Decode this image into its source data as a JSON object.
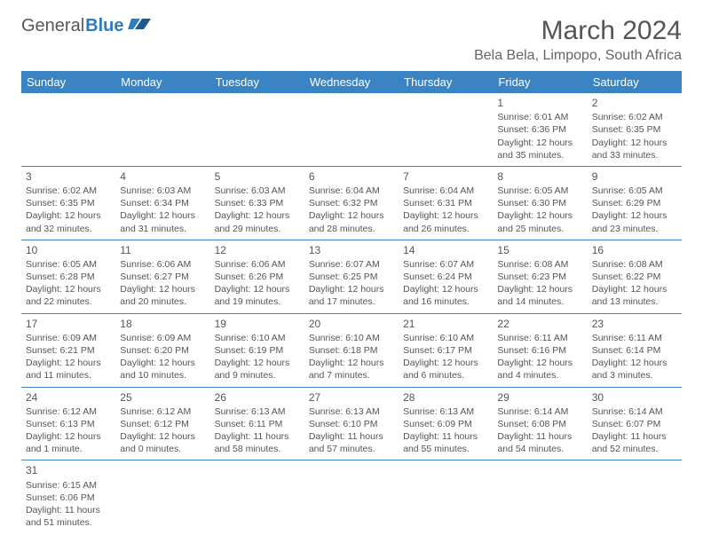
{
  "logo": {
    "general": "General",
    "blue": "Blue"
  },
  "title": "March 2024",
  "location": "Bela Bela, Limpopo, South Africa",
  "colors": {
    "header_bg": "#3b84c4",
    "header_text": "#ffffff",
    "divider": "#3b84c4",
    "text": "#555555",
    "logo_blue": "#2f7bbf"
  },
  "day_names": [
    "Sunday",
    "Monday",
    "Tuesday",
    "Wednesday",
    "Thursday",
    "Friday",
    "Saturday"
  ],
  "weeks": [
    [
      null,
      null,
      null,
      null,
      null,
      {
        "d": "1",
        "rise": "Sunrise: 6:01 AM",
        "set": "Sunset: 6:36 PM",
        "day": "Daylight: 12 hours and 35 minutes."
      },
      {
        "d": "2",
        "rise": "Sunrise: 6:02 AM",
        "set": "Sunset: 6:35 PM",
        "day": "Daylight: 12 hours and 33 minutes."
      }
    ],
    [
      {
        "d": "3",
        "rise": "Sunrise: 6:02 AM",
        "set": "Sunset: 6:35 PM",
        "day": "Daylight: 12 hours and 32 minutes."
      },
      {
        "d": "4",
        "rise": "Sunrise: 6:03 AM",
        "set": "Sunset: 6:34 PM",
        "day": "Daylight: 12 hours and 31 minutes."
      },
      {
        "d": "5",
        "rise": "Sunrise: 6:03 AM",
        "set": "Sunset: 6:33 PM",
        "day": "Daylight: 12 hours and 29 minutes."
      },
      {
        "d": "6",
        "rise": "Sunrise: 6:04 AM",
        "set": "Sunset: 6:32 PM",
        "day": "Daylight: 12 hours and 28 minutes."
      },
      {
        "d": "7",
        "rise": "Sunrise: 6:04 AM",
        "set": "Sunset: 6:31 PM",
        "day": "Daylight: 12 hours and 26 minutes."
      },
      {
        "d": "8",
        "rise": "Sunrise: 6:05 AM",
        "set": "Sunset: 6:30 PM",
        "day": "Daylight: 12 hours and 25 minutes."
      },
      {
        "d": "9",
        "rise": "Sunrise: 6:05 AM",
        "set": "Sunset: 6:29 PM",
        "day": "Daylight: 12 hours and 23 minutes."
      }
    ],
    [
      {
        "d": "10",
        "rise": "Sunrise: 6:05 AM",
        "set": "Sunset: 6:28 PM",
        "day": "Daylight: 12 hours and 22 minutes."
      },
      {
        "d": "11",
        "rise": "Sunrise: 6:06 AM",
        "set": "Sunset: 6:27 PM",
        "day": "Daylight: 12 hours and 20 minutes."
      },
      {
        "d": "12",
        "rise": "Sunrise: 6:06 AM",
        "set": "Sunset: 6:26 PM",
        "day": "Daylight: 12 hours and 19 minutes."
      },
      {
        "d": "13",
        "rise": "Sunrise: 6:07 AM",
        "set": "Sunset: 6:25 PM",
        "day": "Daylight: 12 hours and 17 minutes."
      },
      {
        "d": "14",
        "rise": "Sunrise: 6:07 AM",
        "set": "Sunset: 6:24 PM",
        "day": "Daylight: 12 hours and 16 minutes."
      },
      {
        "d": "15",
        "rise": "Sunrise: 6:08 AM",
        "set": "Sunset: 6:23 PM",
        "day": "Daylight: 12 hours and 14 minutes."
      },
      {
        "d": "16",
        "rise": "Sunrise: 6:08 AM",
        "set": "Sunset: 6:22 PM",
        "day": "Daylight: 12 hours and 13 minutes."
      }
    ],
    [
      {
        "d": "17",
        "rise": "Sunrise: 6:09 AM",
        "set": "Sunset: 6:21 PM",
        "day": "Daylight: 12 hours and 11 minutes."
      },
      {
        "d": "18",
        "rise": "Sunrise: 6:09 AM",
        "set": "Sunset: 6:20 PM",
        "day": "Daylight: 12 hours and 10 minutes."
      },
      {
        "d": "19",
        "rise": "Sunrise: 6:10 AM",
        "set": "Sunset: 6:19 PM",
        "day": "Daylight: 12 hours and 9 minutes."
      },
      {
        "d": "20",
        "rise": "Sunrise: 6:10 AM",
        "set": "Sunset: 6:18 PM",
        "day": "Daylight: 12 hours and 7 minutes."
      },
      {
        "d": "21",
        "rise": "Sunrise: 6:10 AM",
        "set": "Sunset: 6:17 PM",
        "day": "Daylight: 12 hours and 6 minutes."
      },
      {
        "d": "22",
        "rise": "Sunrise: 6:11 AM",
        "set": "Sunset: 6:16 PM",
        "day": "Daylight: 12 hours and 4 minutes."
      },
      {
        "d": "23",
        "rise": "Sunrise: 6:11 AM",
        "set": "Sunset: 6:14 PM",
        "day": "Daylight: 12 hours and 3 minutes."
      }
    ],
    [
      {
        "d": "24",
        "rise": "Sunrise: 6:12 AM",
        "set": "Sunset: 6:13 PM",
        "day": "Daylight: 12 hours and 1 minute."
      },
      {
        "d": "25",
        "rise": "Sunrise: 6:12 AM",
        "set": "Sunset: 6:12 PM",
        "day": "Daylight: 12 hours and 0 minutes."
      },
      {
        "d": "26",
        "rise": "Sunrise: 6:13 AM",
        "set": "Sunset: 6:11 PM",
        "day": "Daylight: 11 hours and 58 minutes."
      },
      {
        "d": "27",
        "rise": "Sunrise: 6:13 AM",
        "set": "Sunset: 6:10 PM",
        "day": "Daylight: 11 hours and 57 minutes."
      },
      {
        "d": "28",
        "rise": "Sunrise: 6:13 AM",
        "set": "Sunset: 6:09 PM",
        "day": "Daylight: 11 hours and 55 minutes."
      },
      {
        "d": "29",
        "rise": "Sunrise: 6:14 AM",
        "set": "Sunset: 6:08 PM",
        "day": "Daylight: 11 hours and 54 minutes."
      },
      {
        "d": "30",
        "rise": "Sunrise: 6:14 AM",
        "set": "Sunset: 6:07 PM",
        "day": "Daylight: 11 hours and 52 minutes."
      }
    ],
    [
      {
        "d": "31",
        "rise": "Sunrise: 6:15 AM",
        "set": "Sunset: 6:06 PM",
        "day": "Daylight: 11 hours and 51 minutes."
      },
      null,
      null,
      null,
      null,
      null,
      null
    ]
  ]
}
